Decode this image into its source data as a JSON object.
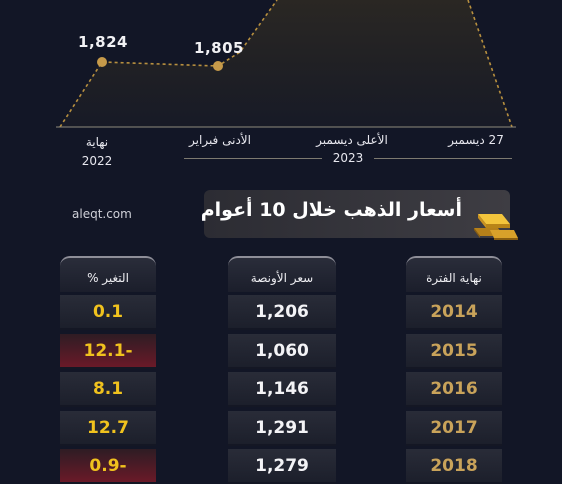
{
  "chart_data": {
    "type": "area",
    "x_labels": [
      "نهاية 2022",
      "الأدنى فبراير",
      "الأعلى ديسمبر",
      "27 ديسمبر"
    ],
    "group_label": "2023",
    "points": [
      {
        "label": "نهاية 2022",
        "value": 1824,
        "value_label": "1,824"
      },
      {
        "label": "الأدنى فبراير",
        "value": 1805,
        "value_label": "1,805"
      }
    ]
  },
  "chart_labels": {
    "end2022_line1": "نهاية",
    "end2022_line2": "2022",
    "low_feb": "الأدنى فبراير",
    "high_dec": "الأعلى ديسمبر",
    "dec27": "27 ديسمبر",
    "year": "2023",
    "v1824": "1,824",
    "v1805": "1,805"
  },
  "header": {
    "title": "أسعار الذهب خلال 10 أعوام",
    "source": "aleqt.com",
    "icon": "gold-bars-icon"
  },
  "table": {
    "columns": {
      "period": "نهاية الفترة",
      "price": "سعر الأونصة",
      "change": "التغير %"
    },
    "rows": [
      {
        "year": "2014",
        "price": "1,206",
        "change": "0.1"
      },
      {
        "year": "2015",
        "price": "1,060",
        "change": "12.1-"
      },
      {
        "year": "2016",
        "price": "1,146",
        "change": "8.1"
      },
      {
        "year": "2017",
        "price": "1,291",
        "change": "12.7"
      },
      {
        "year": "2018",
        "price": "1,279",
        "change": "0.9-"
      }
    ]
  },
  "colors": {
    "background": "#121626",
    "accent_gold": "#c9a35a",
    "change_yellow": "#f0c21e",
    "negative_red": "#6a1a28"
  }
}
